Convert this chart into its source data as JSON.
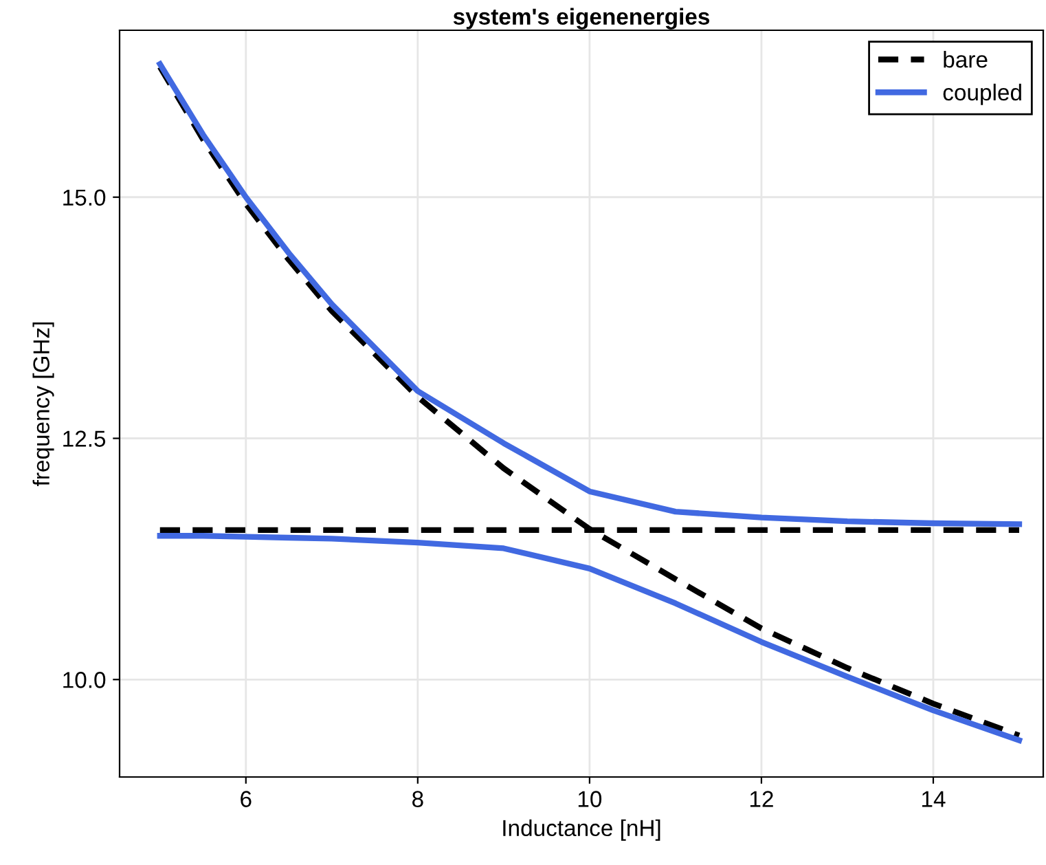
{
  "chart_data": {
    "type": "line",
    "title": "system's eigenenergies",
    "xlabel": "Inductance [nH]",
    "ylabel": "frequency [GHz]",
    "x": [
      5,
      5.5,
      6,
      6.5,
      7,
      8,
      9,
      10,
      11,
      12,
      13,
      14,
      15
    ],
    "series": [
      {
        "name": "bare",
        "color": "#000000",
        "line_style": "dashed",
        "values": [
          16.35,
          15.6,
          14.93,
          14.35,
          13.82,
          12.93,
          12.19,
          11.56,
          11.04,
          10.53,
          10.12,
          9.75,
          9.42
        ]
      },
      {
        "color": "#000000",
        "line_style": "dashed",
        "values": [
          11.55,
          11.55,
          11.55,
          11.55,
          11.55,
          11.55,
          11.55,
          11.55,
          11.55,
          11.55,
          11.55,
          11.55,
          11.55
        ]
      },
      {
        "name": "coupled",
        "color": "#4169e1",
        "line_style": "solid",
        "values": [
          16.38,
          15.65,
          15.0,
          14.42,
          13.89,
          12.99,
          12.45,
          11.95,
          11.74,
          11.68,
          11.64,
          11.62,
          11.61
        ]
      },
      {
        "color": "#4169e1",
        "line_style": "solid",
        "values": [
          11.49,
          11.49,
          11.48,
          11.47,
          11.46,
          11.42,
          11.36,
          11.15,
          10.79,
          10.39,
          10.03,
          9.68,
          9.37
        ]
      }
    ],
    "xlim": [
      4.53,
      15.28
    ],
    "ylim": [
      8.99,
      16.73
    ],
    "xticks": [
      6,
      8,
      10,
      12,
      14
    ],
    "yticks": [
      {
        "value": 10,
        "label": "10.0"
      },
      {
        "value": 12.5,
        "label": "12.5"
      },
      {
        "value": 15,
        "label": "15.0"
      }
    ],
    "grid": true,
    "legend": "top right",
    "marker": "none"
  }
}
